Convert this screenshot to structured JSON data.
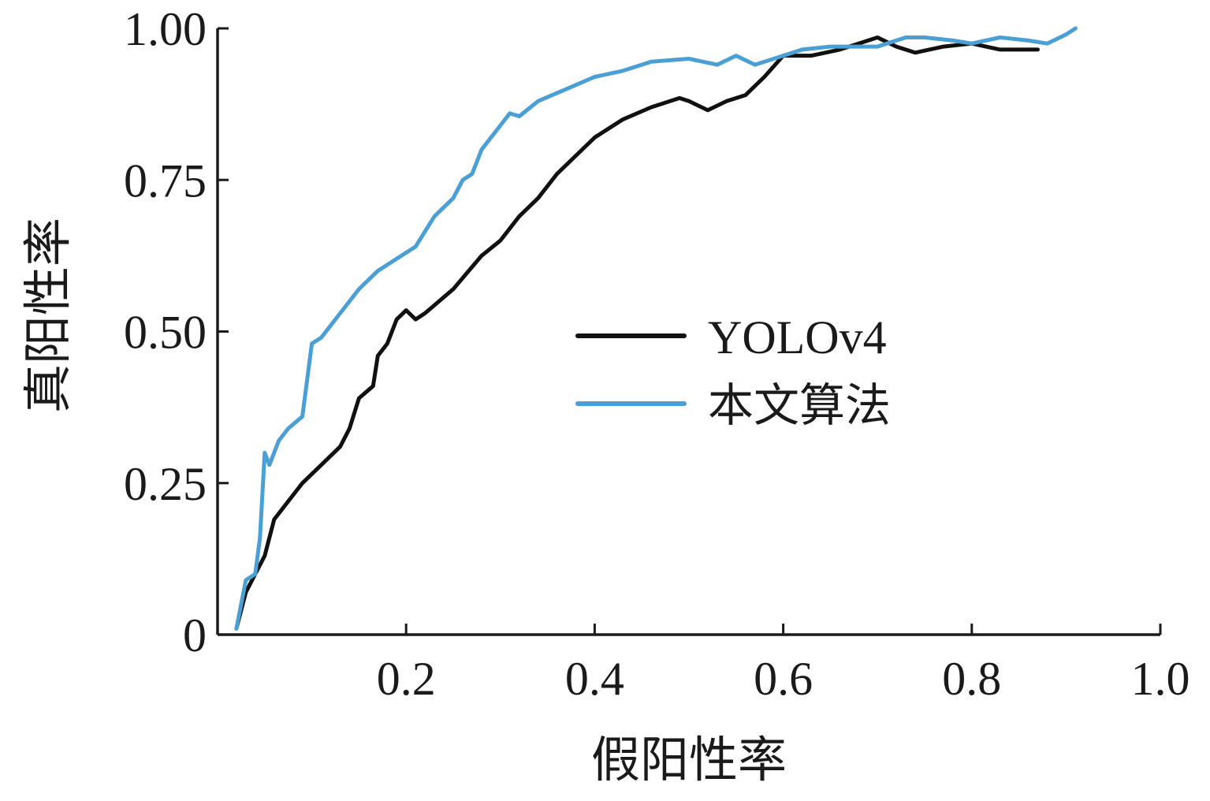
{
  "chart_data": {
    "type": "line",
    "xlabel": "假阳性率",
    "ylabel": "真阳性率",
    "xlim": [
      0.0,
      1.0
    ],
    "ylim": [
      0.0,
      1.0
    ],
    "x_ticks": [
      {
        "value": 0.2,
        "label": "0.2"
      },
      {
        "value": 0.4,
        "label": "0.4"
      },
      {
        "value": 0.6,
        "label": "0.6"
      },
      {
        "value": 0.8,
        "label": "0.8"
      },
      {
        "value": 1.0,
        "label": "1.0"
      }
    ],
    "y_ticks": [
      {
        "value": 0.0,
        "label": "0"
      },
      {
        "value": 0.25,
        "label": "0.25"
      },
      {
        "value": 0.5,
        "label": "0.50"
      },
      {
        "value": 0.75,
        "label": "0.75"
      },
      {
        "value": 1.0,
        "label": "1.00"
      }
    ],
    "grid": false,
    "legend_position": "center-right",
    "series": [
      {
        "name": "YOLOv4",
        "color": "#111111",
        "points": [
          [
            0.02,
            0.01
          ],
          [
            0.03,
            0.07
          ],
          [
            0.04,
            0.1
          ],
          [
            0.05,
            0.13
          ],
          [
            0.06,
            0.19
          ],
          [
            0.07,
            0.21
          ],
          [
            0.09,
            0.25
          ],
          [
            0.11,
            0.28
          ],
          [
            0.13,
            0.31
          ],
          [
            0.14,
            0.34
          ],
          [
            0.15,
            0.39
          ],
          [
            0.165,
            0.41
          ],
          [
            0.17,
            0.46
          ],
          [
            0.18,
            0.48
          ],
          [
            0.19,
            0.52
          ],
          [
            0.2,
            0.535
          ],
          [
            0.21,
            0.52
          ],
          [
            0.22,
            0.53
          ],
          [
            0.25,
            0.57
          ],
          [
            0.28,
            0.625
          ],
          [
            0.3,
            0.65
          ],
          [
            0.32,
            0.69
          ],
          [
            0.34,
            0.72
          ],
          [
            0.36,
            0.76
          ],
          [
            0.38,
            0.79
          ],
          [
            0.4,
            0.82
          ],
          [
            0.43,
            0.85
          ],
          [
            0.46,
            0.87
          ],
          [
            0.48,
            0.88
          ],
          [
            0.49,
            0.885
          ],
          [
            0.5,
            0.88
          ],
          [
            0.52,
            0.865
          ],
          [
            0.54,
            0.88
          ],
          [
            0.56,
            0.89
          ],
          [
            0.58,
            0.92
          ],
          [
            0.6,
            0.955
          ],
          [
            0.63,
            0.955
          ],
          [
            0.66,
            0.965
          ],
          [
            0.68,
            0.975
          ],
          [
            0.7,
            0.985
          ],
          [
            0.72,
            0.97
          ],
          [
            0.74,
            0.96
          ],
          [
            0.77,
            0.97
          ],
          [
            0.8,
            0.975
          ],
          [
            0.83,
            0.965
          ],
          [
            0.87,
            0.965
          ]
        ]
      },
      {
        "name": "本文算法",
        "color": "#4a9fd4",
        "points": [
          [
            0.02,
            0.01
          ],
          [
            0.03,
            0.09
          ],
          [
            0.04,
            0.1
          ],
          [
            0.045,
            0.16
          ],
          [
            0.05,
            0.3
          ],
          [
            0.055,
            0.28
          ],
          [
            0.065,
            0.32
          ],
          [
            0.075,
            0.34
          ],
          [
            0.09,
            0.36
          ],
          [
            0.1,
            0.48
          ],
          [
            0.11,
            0.49
          ],
          [
            0.13,
            0.53
          ],
          [
            0.15,
            0.57
          ],
          [
            0.17,
            0.6
          ],
          [
            0.19,
            0.62
          ],
          [
            0.21,
            0.64
          ],
          [
            0.23,
            0.69
          ],
          [
            0.25,
            0.72
          ],
          [
            0.26,
            0.75
          ],
          [
            0.27,
            0.76
          ],
          [
            0.28,
            0.8
          ],
          [
            0.31,
            0.86
          ],
          [
            0.32,
            0.855
          ],
          [
            0.34,
            0.88
          ],
          [
            0.37,
            0.9
          ],
          [
            0.4,
            0.92
          ],
          [
            0.43,
            0.93
          ],
          [
            0.46,
            0.945
          ],
          [
            0.5,
            0.95
          ],
          [
            0.53,
            0.94
          ],
          [
            0.55,
            0.955
          ],
          [
            0.57,
            0.94
          ],
          [
            0.6,
            0.955
          ],
          [
            0.62,
            0.965
          ],
          [
            0.65,
            0.97
          ],
          [
            0.7,
            0.97
          ],
          [
            0.73,
            0.985
          ],
          [
            0.75,
            0.985
          ],
          [
            0.78,
            0.98
          ],
          [
            0.8,
            0.975
          ],
          [
            0.83,
            0.985
          ],
          [
            0.86,
            0.98
          ],
          [
            0.88,
            0.975
          ],
          [
            0.9,
            0.99
          ],
          [
            0.91,
            1.0
          ]
        ]
      }
    ]
  }
}
